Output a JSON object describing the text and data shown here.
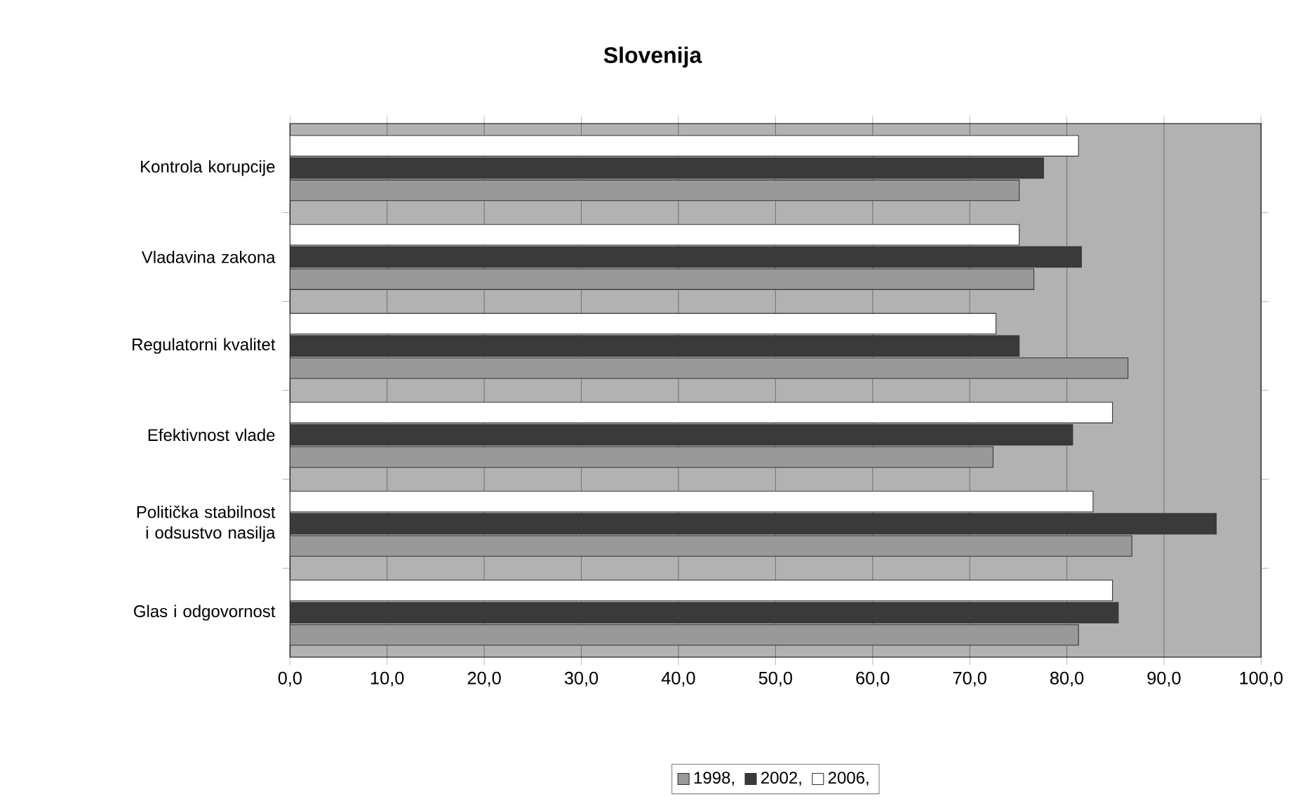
{
  "chart_data": {
    "type": "bar",
    "orientation": "horizontal",
    "title": "Slovenija",
    "categories": [
      "Kontrola korupcije",
      "Vladavina zakona",
      "Regulatorni kvalitet",
      "Efektivnost vlade",
      "Politička stabilnost i odsustvo nasilja",
      "Glas i odgovornost"
    ],
    "series": [
      {
        "name": "1998,",
        "color": "#999999",
        "values": [
          75.1,
          76.6,
          86.3,
          72.4,
          86.7,
          81.2
        ]
      },
      {
        "name": "2002,",
        "color": "#3a3a3a",
        "values": [
          77.6,
          81.5,
          75.1,
          80.6,
          95.4,
          85.3
        ]
      },
      {
        "name": "2006,",
        "color": "#ffffff",
        "values": [
          81.2,
          75.1,
          72.7,
          84.7,
          82.7,
          84.7
        ]
      }
    ],
    "xlim": [
      0,
      100
    ],
    "xticks": [
      {
        "value": 0,
        "label": "0,0"
      },
      {
        "value": 10,
        "label": "10,0"
      },
      {
        "value": 20,
        "label": "20,0"
      },
      {
        "value": 30,
        "label": "30,0"
      },
      {
        "value": 40,
        "label": "40,0"
      },
      {
        "value": 50,
        "label": "50,0"
      },
      {
        "value": 60,
        "label": "60,0"
      },
      {
        "value": 70,
        "label": "70,0"
      },
      {
        "value": 80,
        "label": "80,0"
      },
      {
        "value": 90,
        "label": "90,0"
      },
      {
        "value": 100,
        "label": "100,0"
      }
    ],
    "grid": "x",
    "legend": "bottom"
  }
}
